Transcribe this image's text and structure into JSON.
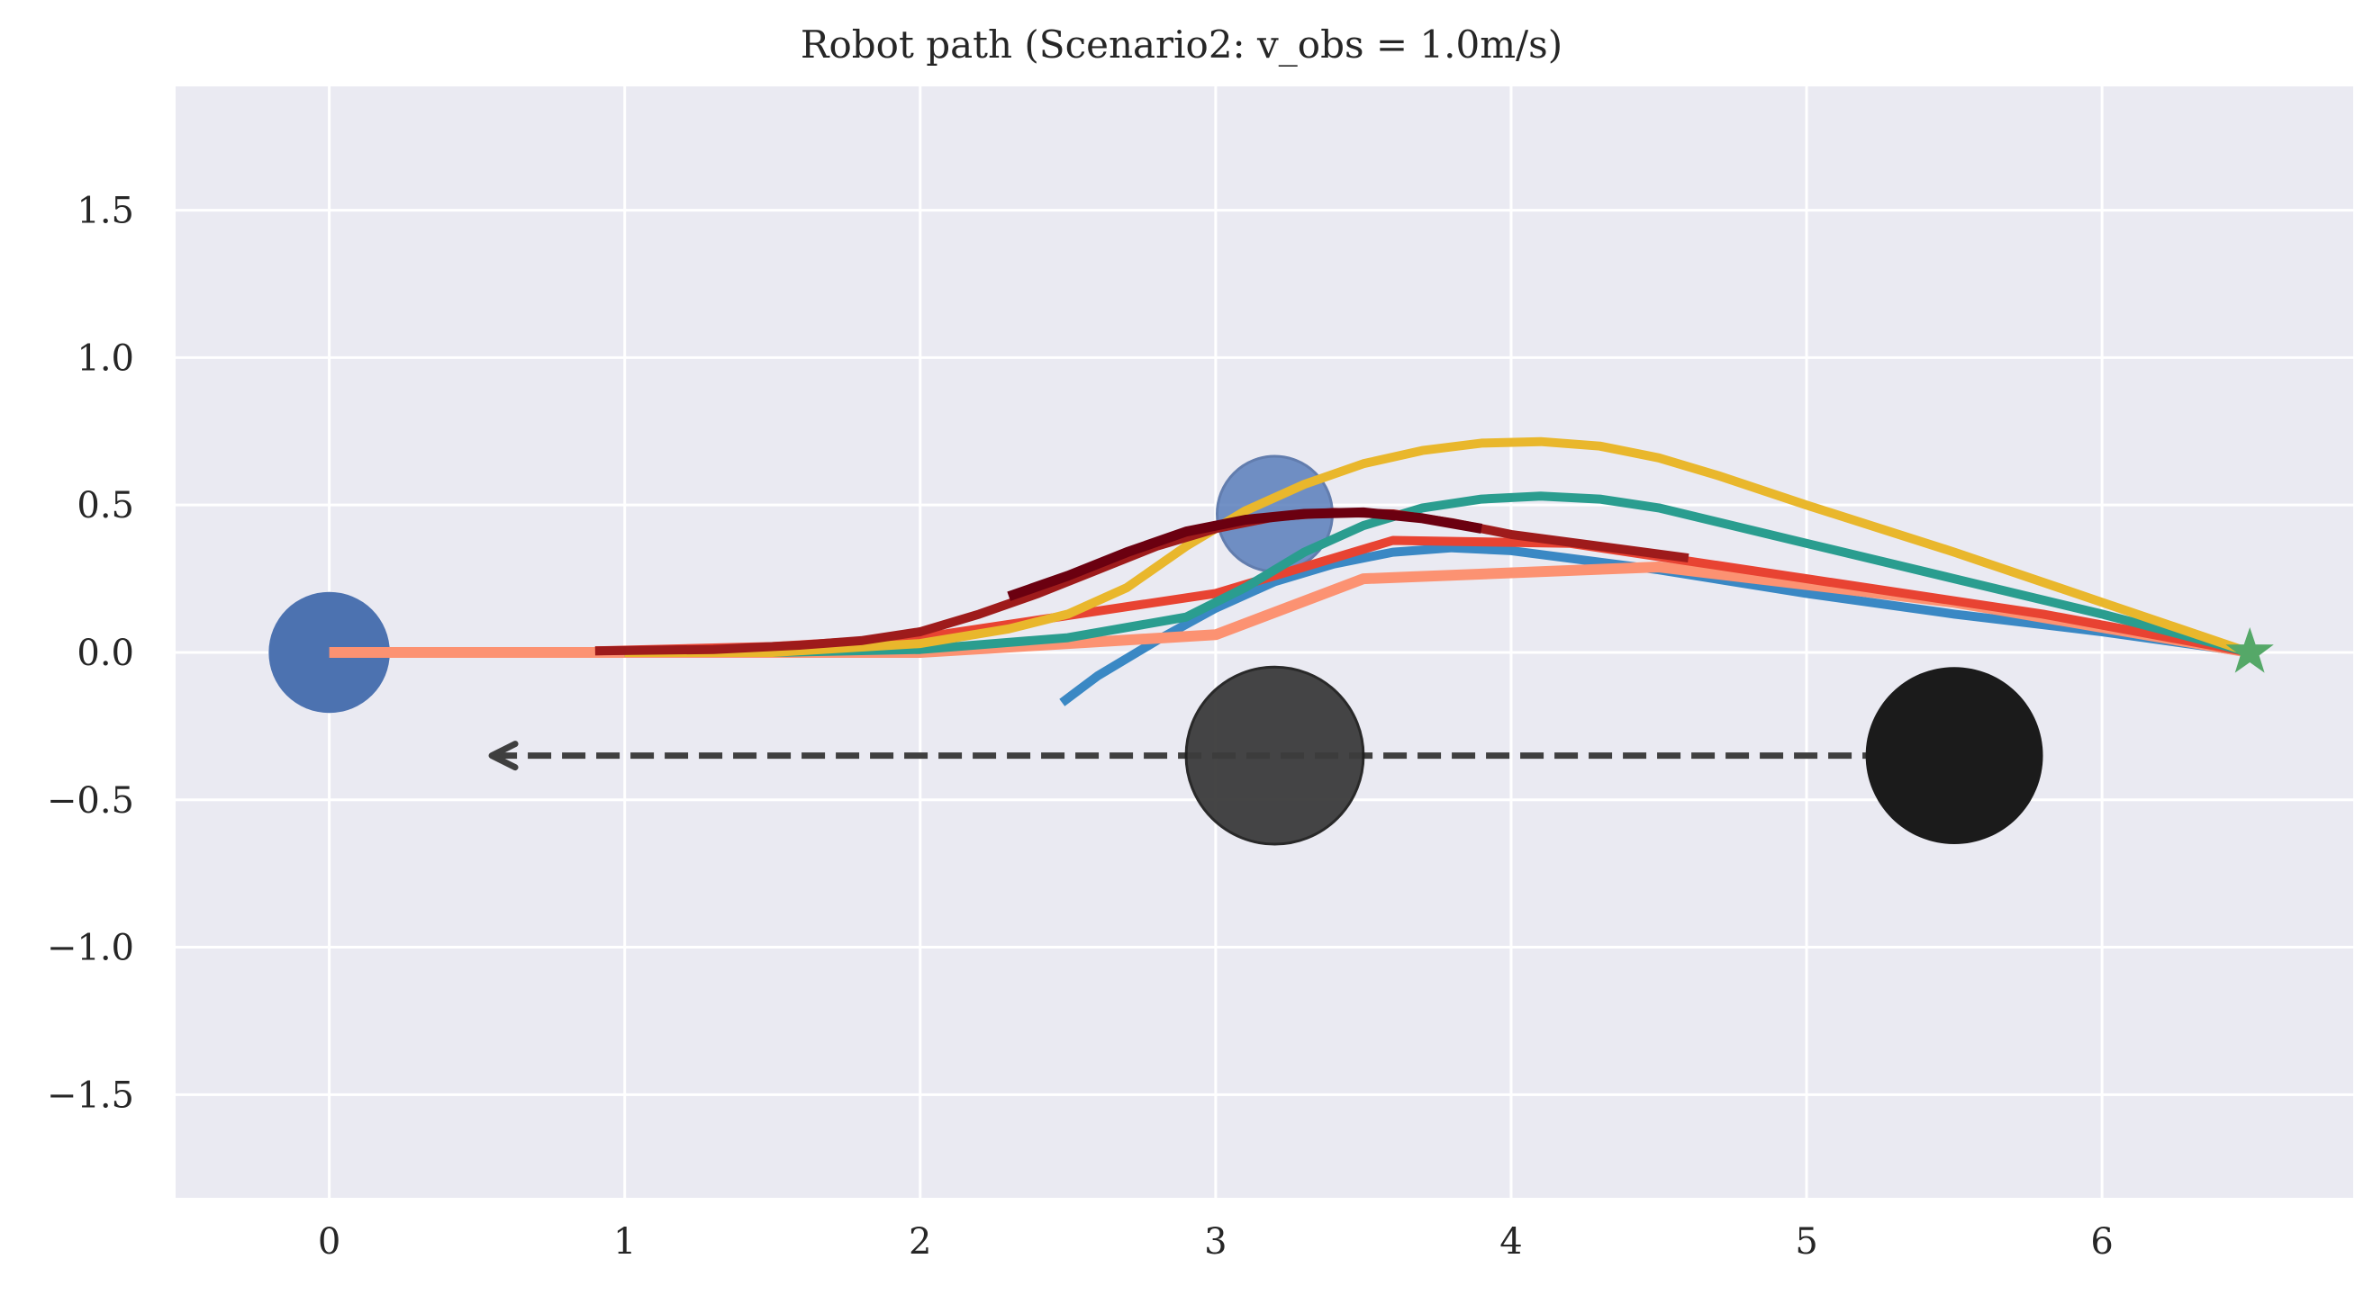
{
  "chart_data": {
    "type": "line",
    "title": "Robot path (Scenario2: v_obs = 1.0m/s)",
    "xlabel": "",
    "ylabel": "",
    "xlim": [
      -0.52,
      6.85
    ],
    "ylim": [
      -1.85,
      1.92
    ],
    "xticks": [
      0,
      1,
      2,
      3,
      4,
      5,
      6
    ],
    "yticks": [
      -1.5,
      -1.0,
      -0.5,
      0.0,
      0.5,
      1.0,
      1.5
    ],
    "xtick_labels": [
      "0",
      "1",
      "2",
      "3",
      "4",
      "5",
      "6"
    ],
    "ytick_labels": [
      "−1.5",
      "−1.0",
      "−0.5",
      "0.0",
      "0.5",
      "1.0",
      "1.5"
    ],
    "grid": true,
    "background": "#eaeaf2",
    "series": [
      {
        "color": "#3a88c4",
        "width": 10,
        "points": [
          [
            2.48,
            -0.17
          ],
          [
            2.6,
            -0.08
          ],
          [
            2.8,
            0.04
          ],
          [
            3.0,
            0.15
          ],
          [
            3.2,
            0.24
          ],
          [
            3.4,
            0.3
          ],
          [
            3.6,
            0.34
          ],
          [
            3.8,
            0.355
          ],
          [
            4.0,
            0.345
          ],
          [
            4.5,
            0.28
          ],
          [
            5.0,
            0.2
          ],
          [
            5.5,
            0.13
          ],
          [
            6.0,
            0.07
          ],
          [
            6.5,
            0.0
          ]
        ]
      },
      {
        "color": "#fc9272",
        "width": 12,
        "points": [
          [
            0.0,
            0.0
          ],
          [
            1.0,
            0.0
          ],
          [
            2.0,
            0.0
          ],
          [
            3.0,
            0.06
          ],
          [
            3.5,
            0.25
          ],
          [
            4.5,
            0.29
          ],
          [
            5.5,
            0.17
          ],
          [
            6.5,
            0.0
          ]
        ]
      },
      {
        "color": "#e84332",
        "width": 10,
        "points": [
          [
            0.9,
            0.005
          ],
          [
            1.5,
            0.02
          ],
          [
            2.0,
            0.05
          ],
          [
            3.0,
            0.2
          ],
          [
            3.6,
            0.38
          ],
          [
            4.2,
            0.37
          ],
          [
            5.0,
            0.25
          ],
          [
            5.8,
            0.13
          ],
          [
            6.5,
            0.0
          ]
        ]
      },
      {
        "color": "#2a9d8f",
        "width": 10,
        "points": [
          [
            1.0,
            0.0
          ],
          [
            1.5,
            0.0
          ],
          [
            2.0,
            0.01
          ],
          [
            2.5,
            0.05
          ],
          [
            2.9,
            0.12
          ],
          [
            3.1,
            0.22
          ],
          [
            3.3,
            0.34
          ],
          [
            3.5,
            0.43
          ],
          [
            3.7,
            0.49
          ],
          [
            3.9,
            0.52
          ],
          [
            4.1,
            0.53
          ],
          [
            4.3,
            0.52
          ],
          [
            4.5,
            0.49
          ],
          [
            5.0,
            0.37
          ],
          [
            5.5,
            0.25
          ],
          [
            6.0,
            0.13
          ],
          [
            6.5,
            0.0
          ]
        ]
      },
      {
        "color": "#e9b72c",
        "width": 10,
        "points": [
          [
            1.0,
            0.0
          ],
          [
            1.5,
            0.0
          ],
          [
            2.0,
            0.03
          ],
          [
            2.3,
            0.08
          ],
          [
            2.5,
            0.13
          ],
          [
            2.7,
            0.22
          ],
          [
            2.9,
            0.36
          ],
          [
            3.1,
            0.48
          ],
          [
            3.3,
            0.57
          ],
          [
            3.5,
            0.64
          ],
          [
            3.7,
            0.685
          ],
          [
            3.9,
            0.71
          ],
          [
            4.1,
            0.715
          ],
          [
            4.3,
            0.7
          ],
          [
            4.5,
            0.66
          ],
          [
            4.7,
            0.6
          ],
          [
            5.0,
            0.5
          ],
          [
            5.5,
            0.34
          ],
          [
            6.0,
            0.17
          ],
          [
            6.5,
            0.0
          ]
        ]
      },
      {
        "color": "#9e1b1b",
        "width": 10,
        "points": [
          [
            0.9,
            0.005
          ],
          [
            1.3,
            0.01
          ],
          [
            1.6,
            0.025
          ],
          [
            1.8,
            0.04
          ],
          [
            2.0,
            0.07
          ],
          [
            2.2,
            0.13
          ],
          [
            2.4,
            0.2
          ],
          [
            2.6,
            0.28
          ],
          [
            2.8,
            0.36
          ],
          [
            3.0,
            0.42
          ],
          [
            3.2,
            0.46
          ],
          [
            3.4,
            0.475
          ],
          [
            3.6,
            0.47
          ],
          [
            3.8,
            0.44
          ],
          [
            4.0,
            0.4
          ],
          [
            4.3,
            0.36
          ],
          [
            4.6,
            0.32
          ]
        ]
      },
      {
        "color": "#6b0010",
        "width": 11,
        "points": [
          [
            2.3,
            0.19
          ],
          [
            2.5,
            0.26
          ],
          [
            2.7,
            0.34
          ],
          [
            2.9,
            0.41
          ],
          [
            3.1,
            0.45
          ],
          [
            3.3,
            0.47
          ],
          [
            3.5,
            0.475
          ],
          [
            3.7,
            0.455
          ],
          [
            3.9,
            0.42
          ]
        ]
      }
    ],
    "circles": [
      {
        "x": 0.0,
        "y": 0.0,
        "r": 0.205,
        "fill": "#4c72b0",
        "stroke": "none",
        "opacity": 1.0
      },
      {
        "x": 3.2,
        "y": 0.47,
        "r": 0.195,
        "fill": "#5a7ebb",
        "stroke": "#4b6aa3",
        "opacity": 0.85
      },
      {
        "x": 3.2,
        "y": -0.35,
        "r": 0.3,
        "fill": "#3c3c3c",
        "stroke": "#1f1f1f",
        "opacity": 0.95
      },
      {
        "x": 5.5,
        "y": -0.35,
        "r": 0.3,
        "fill": "#1b1b1b",
        "stroke": "none",
        "opacity": 1.0
      }
    ],
    "obstacle_arrow": {
      "from": [
        5.5,
        -0.35
      ],
      "to": [
        0.55,
        -0.35
      ],
      "color": "#3f3f3f",
      "dash": true
    },
    "goal": {
      "x": 6.5,
      "y": 0.0,
      "marker": "star",
      "color": "#55a868"
    }
  }
}
